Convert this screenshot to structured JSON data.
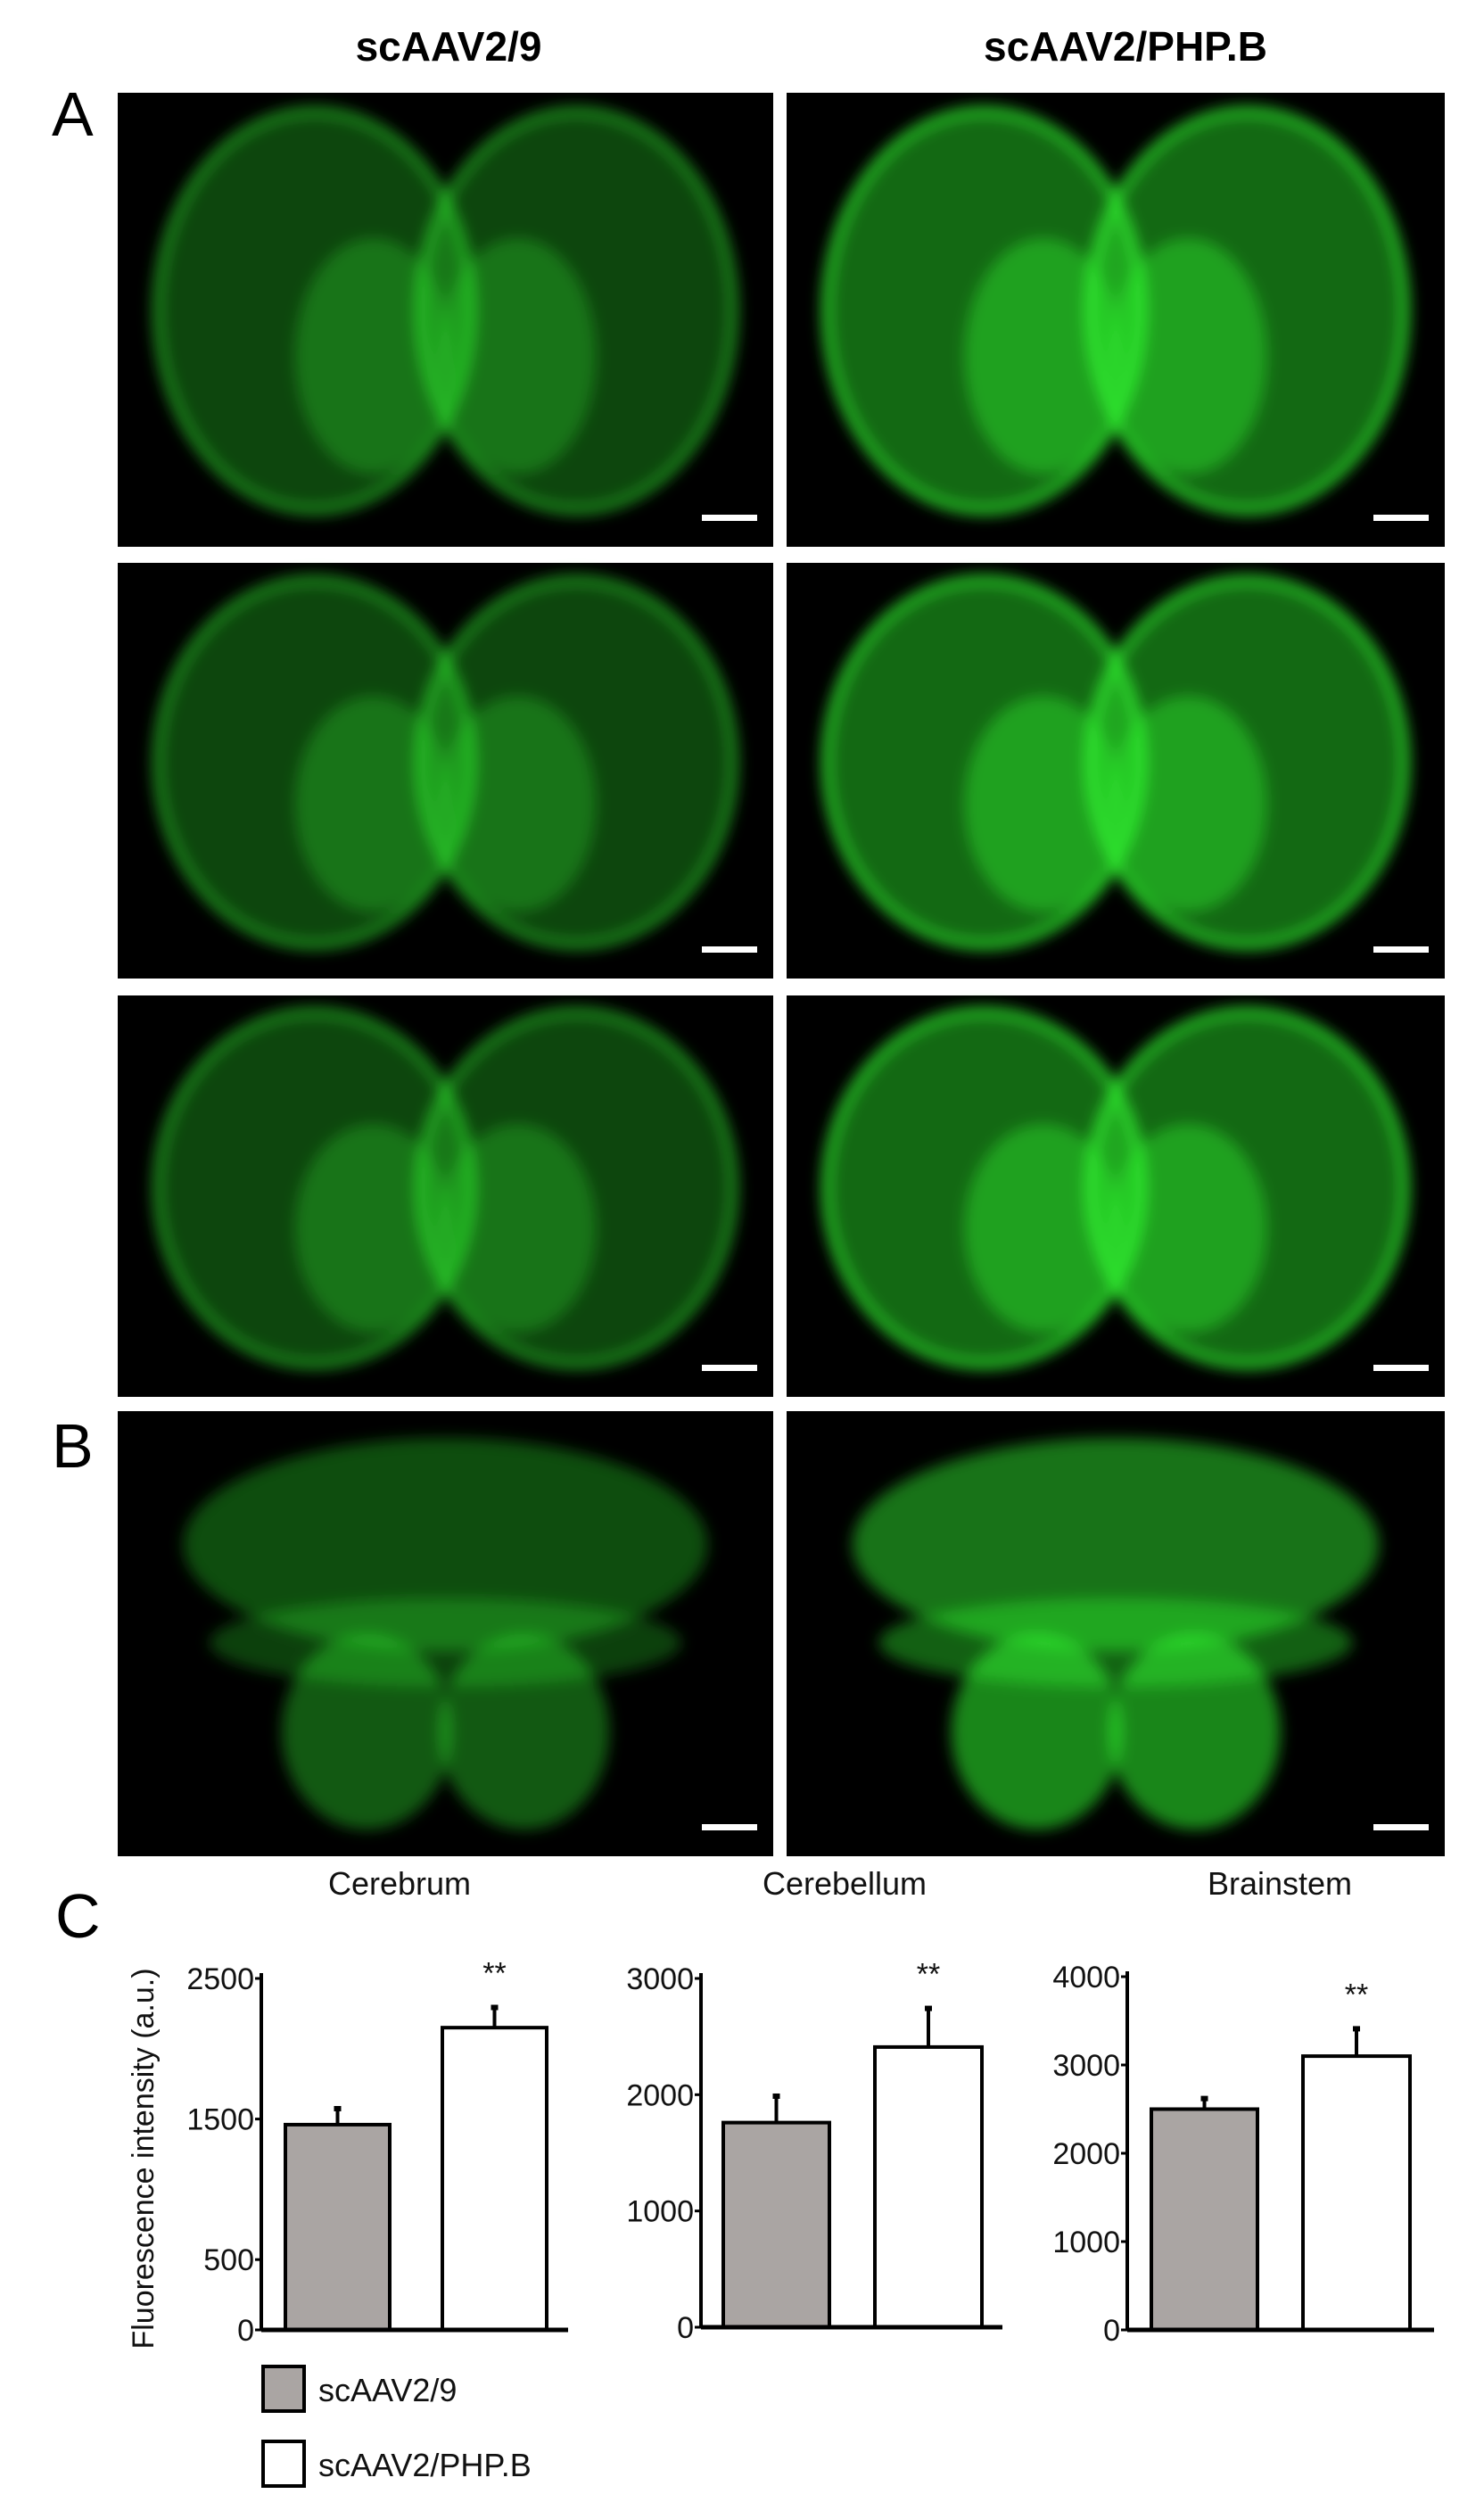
{
  "figure": {
    "column_headers": [
      "scAAV2/9",
      "scAAV2/PHP.B"
    ],
    "panel_labels": [
      "A",
      "B",
      "C"
    ],
    "micrograph_colors": {
      "background": "#000000",
      "signal": "#33ff33",
      "scale_bar": "#ffffff"
    }
  },
  "chart_data": [
    {
      "type": "bar",
      "title": "Cerebrum",
      "ylabel": "Fluorescence intensity (a.u.)",
      "categories": [
        "scAAV2/9",
        "scAAV2/PHP.B"
      ],
      "values": [
        1460,
        2150
      ],
      "error_upper": [
        1580,
        2300
      ],
      "ylim": [
        0,
        2500
      ],
      "yticks": [
        0,
        500,
        1500,
        2500
      ],
      "annotation": "**",
      "colors": [
        "#aaa5a3",
        "#ffffff"
      ]
    },
    {
      "type": "bar",
      "title": "Cerebellum",
      "categories": [
        "scAAV2/9",
        "scAAV2/PHP.B"
      ],
      "values": [
        1760,
        2410
      ],
      "error_upper": [
        1995,
        2750
      ],
      "ylim": [
        0,
        3000
      ],
      "yticks": [
        0,
        1000,
        2000,
        3000
      ],
      "annotation": "**",
      "colors": [
        "#aaa5a3",
        "#ffffff"
      ]
    },
    {
      "type": "bar",
      "title": "Brainstem",
      "categories": [
        "scAAV2/9",
        "scAAV2/PHP.B"
      ],
      "values": [
        2500,
        3100
      ],
      "error_upper": [
        2630,
        3420
      ],
      "ylim": [
        0,
        4000
      ],
      "yticks": [
        0,
        1000,
        2000,
        3000,
        4000
      ],
      "annotation": "**",
      "colors": [
        "#aaa5a3",
        "#ffffff"
      ]
    }
  ],
  "legend": [
    {
      "label": "scAAV2/9",
      "color": "#aaa5a3"
    },
    {
      "label": "scAAV2/PHP.B",
      "color": "#ffffff"
    }
  ]
}
